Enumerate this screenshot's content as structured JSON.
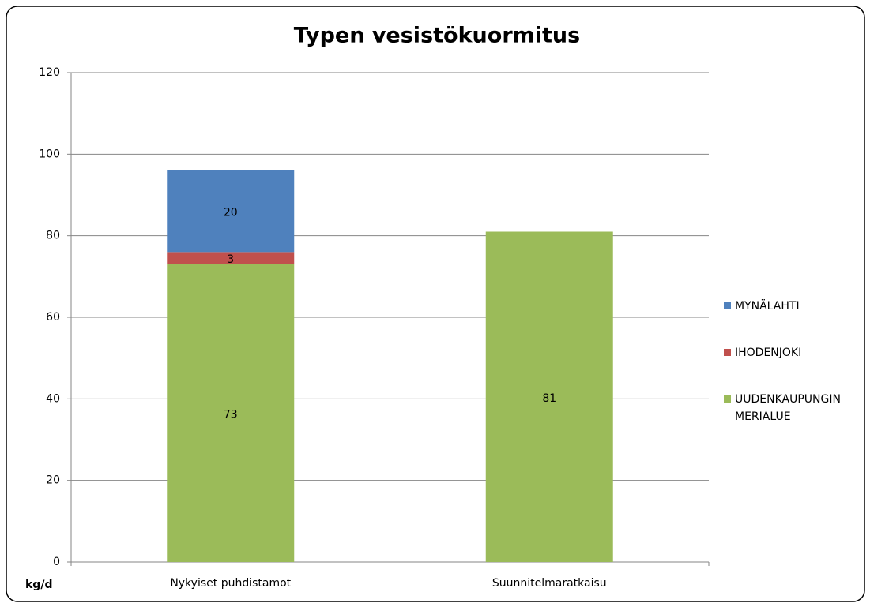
{
  "chart_data": {
    "type": "bar",
    "stacked": true,
    "title": "Typen vesistökuormitus",
    "y_label": "kg/d",
    "categories": [
      "Nykyiset puhdistamot",
      "Suunnitelmaratkaisu"
    ],
    "series": [
      {
        "name": "UUDENKAUPUNGIN MERIALUE",
        "color": "#9bbb59",
        "values": [
          73,
          81
        ]
      },
      {
        "name": "IHODENJOKI",
        "color": "#c0504d",
        "values": [
          3,
          null
        ]
      },
      {
        "name": "MYNÄLAHTI",
        "color": "#4f81bd",
        "values": [
          20,
          null
        ]
      }
    ],
    "ylim": [
      0,
      120
    ],
    "yticks": [
      0,
      20,
      40,
      60,
      80,
      100,
      120
    ],
    "grid": true,
    "legend": "right"
  }
}
